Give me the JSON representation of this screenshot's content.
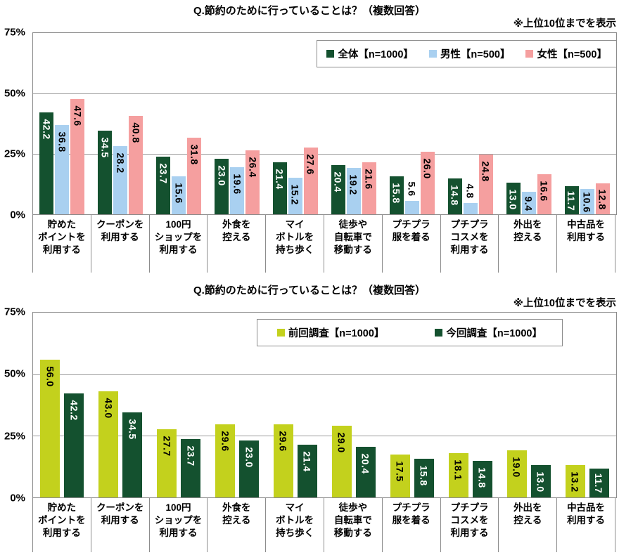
{
  "chart_data": [
    {
      "type": "bar",
      "title": "Q.節約のために行っていることは？（複数回答）",
      "note": "※上位10位までを表示",
      "ylim": [
        0,
        75
      ],
      "yticks": [
        75,
        50,
        25,
        0
      ],
      "ytick_labels": [
        "75%",
        "50%",
        "25%",
        "0%"
      ],
      "gridlines": [
        50,
        25
      ],
      "legend_position": "top-right-inside",
      "grid": "horizontal",
      "categories": [
        "貯めた\nポイントを\n利用する",
        "クーポンを\n利用する",
        "100円\nショップを\n利用する",
        "外食を\n控える",
        "マイ\nボトルを\n持ち歩く",
        "徒歩や\n自転車で\n移動する",
        "プチプラ\n服を着る",
        "プチプラ\nコスメを\n利用する",
        "外出を\n控える",
        "中古品を\n利用する"
      ],
      "series": [
        {
          "name": "全体【n=1000】",
          "color": "#14512f",
          "label_color": "#ffffff",
          "values": [
            42.2,
            34.5,
            23.7,
            23.0,
            21.4,
            20.4,
            15.8,
            14.8,
            13.0,
            11.7
          ]
        },
        {
          "name": "男性【n=500】",
          "color": "#a9d0f0",
          "label_color": "#000000",
          "values": [
            36.8,
            28.2,
            15.6,
            19.6,
            15.2,
            19.2,
            5.6,
            4.8,
            9.4,
            10.6
          ]
        },
        {
          "name": "女性【n=500】",
          "color": "#f59f9f",
          "label_color": "#000000",
          "values": [
            47.6,
            40.8,
            31.8,
            26.4,
            27.6,
            21.6,
            26.0,
            24.8,
            16.6,
            12.8
          ]
        }
      ]
    },
    {
      "type": "bar",
      "title": "Q.節約のために行っていることは？（複数回答）",
      "note": "※上位10位までを表示",
      "ylim": [
        0,
        75
      ],
      "yticks": [
        75,
        50,
        25,
        0
      ],
      "ytick_labels": [
        "75%",
        "50%",
        "25%",
        "0%"
      ],
      "gridlines": [
        50,
        25
      ],
      "legend_position": "top-center-inside",
      "grid": "horizontal",
      "categories": [
        "貯めた\nポイントを\n利用する",
        "クーポンを\n利用する",
        "100円\nショップを\n利用する",
        "外食を\n控える",
        "マイ\nボトルを\n持ち歩く",
        "徒歩や\n自転車で\n移動する",
        "プチプラ\n服を着る",
        "プチプラ\nコスメを\n利用する",
        "外出を\n控える",
        "中古品を\n利用する"
      ],
      "series": [
        {
          "name": "前回調査【n=1000】",
          "color": "#c3d11d",
          "label_color": "#000000",
          "values": [
            56.0,
            43.0,
            27.7,
            29.6,
            29.6,
            29.0,
            17.5,
            18.1,
            19.0,
            13.2
          ]
        },
        {
          "name": "今回調査【n=1000】",
          "color": "#14512f",
          "label_color": "#ffffff",
          "values": [
            42.2,
            34.5,
            23.7,
            23.0,
            21.4,
            20.4,
            15.8,
            14.8,
            13.0,
            11.7
          ]
        }
      ]
    }
  ]
}
